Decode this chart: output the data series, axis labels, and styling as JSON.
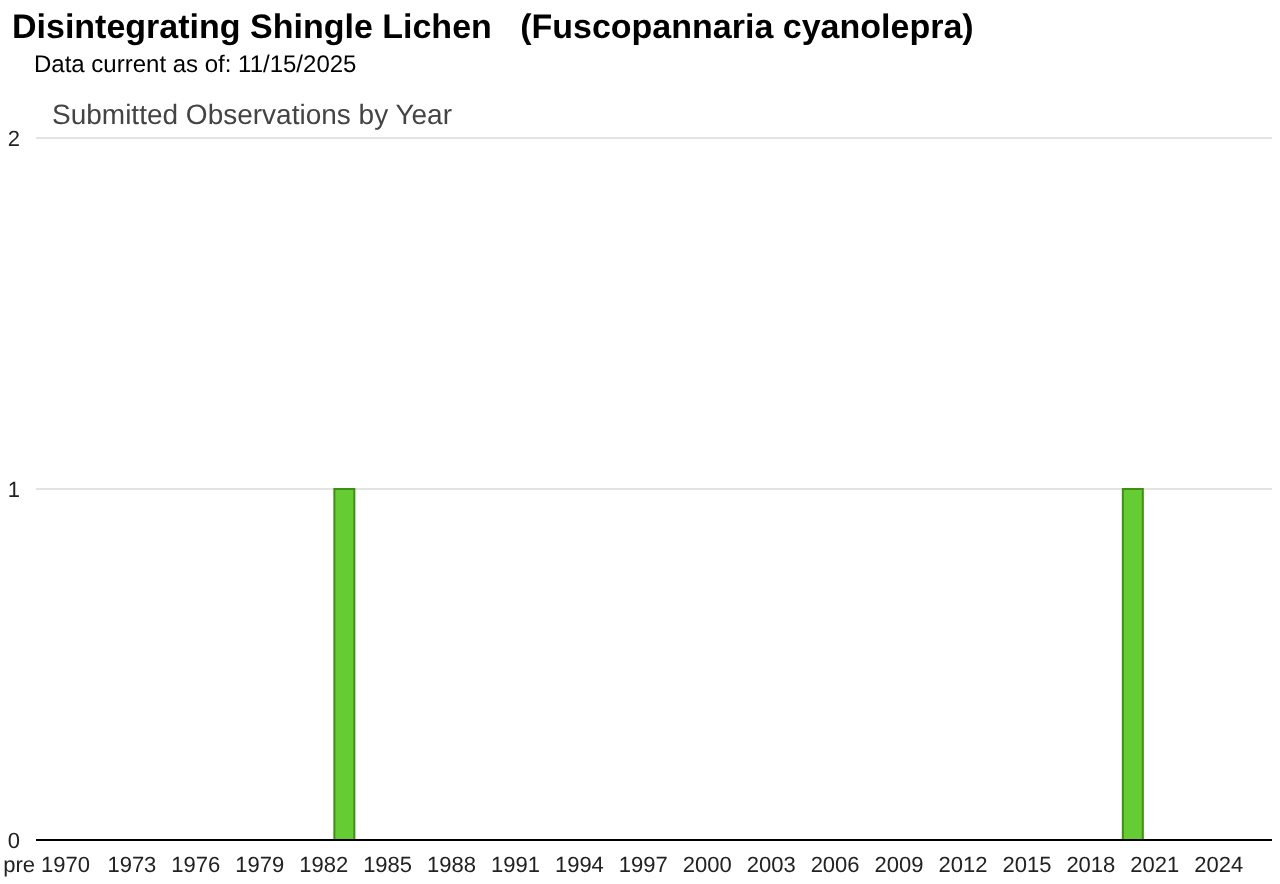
{
  "chart_data": {
    "type": "bar",
    "title": "Disintegrating Shingle Lichen   (Fuscopannaria cyanolepra)",
    "subtitle": "Data current as of: 11/15/2025",
    "annotations": [
      "Submitted Observations by Year"
    ],
    "categories": [
      "pre 1970",
      null,
      null,
      null,
      "1973",
      null,
      null,
      "1976",
      null,
      null,
      "1979",
      null,
      null,
      "1982",
      null,
      null,
      "1985",
      null,
      null,
      "1988",
      null,
      null,
      "1991",
      null,
      null,
      "1994",
      null,
      null,
      "1997",
      null,
      null,
      "2000",
      null,
      null,
      "2003",
      null,
      null,
      "2006",
      null,
      null,
      "2009",
      null,
      null,
      "2012",
      null,
      null,
      "2015",
      null,
      null,
      "2018",
      null,
      null,
      "2021",
      null,
      null,
      "2024",
      null,
      null
    ],
    "values": [
      0,
      0,
      0,
      0,
      0,
      0,
      0,
      0,
      0,
      0,
      0,
      0,
      0,
      0,
      1,
      0,
      0,
      0,
      0,
      0,
      0,
      0,
      0,
      0,
      0,
      0,
      0,
      0,
      0,
      0,
      0,
      0,
      0,
      0,
      0,
      0,
      0,
      0,
      0,
      0,
      0,
      0,
      0,
      0,
      0,
      0,
      0,
      0,
      0,
      0,
      0,
      1,
      0,
      0,
      0,
      0,
      0,
      0
    ],
    "color": "#66cc33",
    "ylim": [
      0,
      2
    ],
    "yticks": [
      0,
      1,
      2
    ],
    "grid": "y",
    "legend": false
  }
}
